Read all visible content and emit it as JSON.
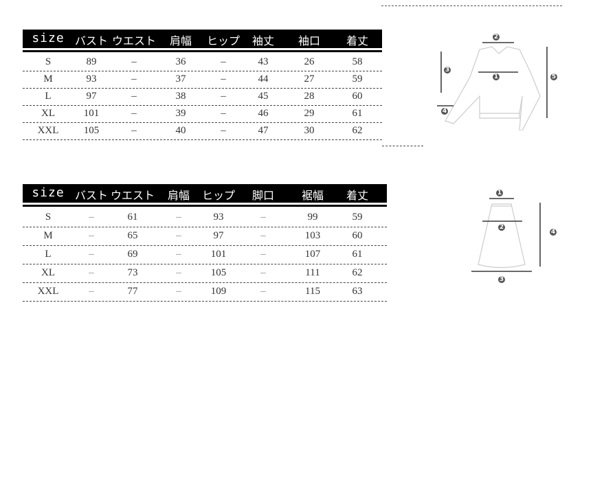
{
  "top_table": {
    "headers": [
      "size",
      "バスト",
      "ウエスト",
      "肩幅",
      "ヒップ",
      "袖丈",
      "袖口",
      "着丈"
    ],
    "rows": [
      [
        "S",
        "89",
        "–",
        "36",
        "–",
        "43",
        "26",
        "58"
      ],
      [
        "M",
        "93",
        "–",
        "37",
        "–",
        "44",
        "27",
        "59"
      ],
      [
        "L",
        "97",
        "–",
        "38",
        "–",
        "45",
        "28",
        "60"
      ],
      [
        "XL",
        "101",
        "–",
        "39",
        "–",
        "46",
        "29",
        "61"
      ],
      [
        "XXL",
        "105",
        "–",
        "40",
        "–",
        "47",
        "30",
        "62"
      ]
    ]
  },
  "bottom_table": {
    "headers": [
      "size",
      "バスト",
      "ウエスト",
      "肩幅",
      "ヒップ",
      "脚口",
      "裾幅",
      "着丈"
    ],
    "rows": [
      [
        "S",
        "–",
        "61",
        "–",
        "93",
        "–",
        "99",
        "59"
      ],
      [
        "M",
        "–",
        "65",
        "–",
        "97",
        "–",
        "103",
        "60"
      ],
      [
        "L",
        "–",
        "69",
        "–",
        "101",
        "–",
        "107",
        "61"
      ],
      [
        "XL",
        "–",
        "73",
        "–",
        "105",
        "–",
        "111",
        "62"
      ],
      [
        "XXL",
        "–",
        "77",
        "–",
        "109",
        "–",
        "115",
        "63"
      ]
    ]
  },
  "top_diagram": {
    "labels": [
      "1",
      "2",
      "3",
      "4",
      "5"
    ]
  },
  "skirt_diagram": {
    "labels": [
      "1",
      "2",
      "3",
      "4"
    ]
  }
}
